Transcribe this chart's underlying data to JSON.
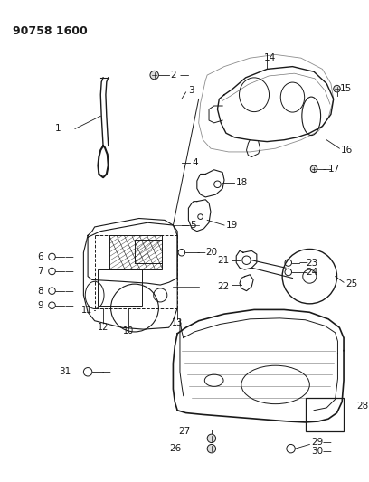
{
  "title": "90758 1600",
  "bg": "#ffffff",
  "lc": "#1a1a1a",
  "tc": "#1a1a1a",
  "figsize": [
    4.08,
    5.33
  ],
  "dpi": 100
}
